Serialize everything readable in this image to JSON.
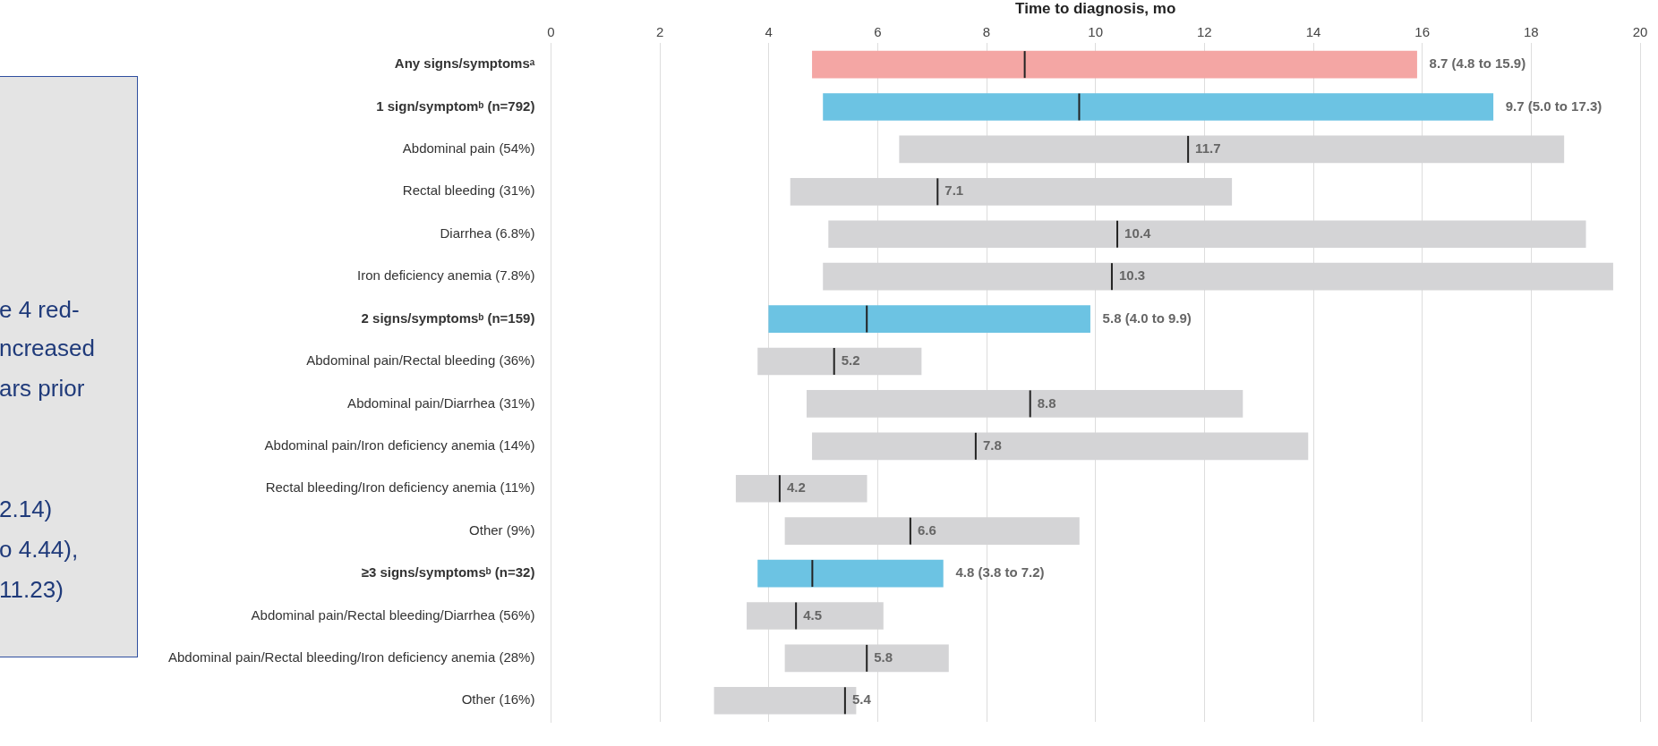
{
  "chart_data": {
    "type": "box",
    "orientation": "horizontal",
    "xlabel": "Time to diagnosis, mo",
    "categories": [
      "Any signs/symptomsᵃ",
      "1 sign/symptomᵇ (n=792)",
      "Abdominal pain (54%)",
      "Rectal bleeding (31%)",
      "Diarrhea (6.8%)",
      "Iron deficiency anemia (7.8%)",
      "2 signs/symptomsᵇ (n=159)",
      "Abdominal pain/Rectal bleeding (36%)",
      "Abdominal pain/Diarrhea (31%)",
      "Abdominal pain/Iron deficiency anemia (14%)",
      "Rectal bleeding/Iron deficiency anemia (11%)",
      "Other (9%)",
      "≥3 signs/symptomsᵇ (n=32)",
      "Abdominal pain/Rectal bleeding/Diarrhea (56%)",
      "Abdominal pain/Rectal bleeding/Iron deficiency anemia (28%)",
      "Other (16%)"
    ],
    "boxes": [
      {
        "low": 4.8,
        "q1": 4.8,
        "median": 8.7,
        "q3": 15.9,
        "high": 15.9
      },
      {
        "low": 5.0,
        "q1": 5.0,
        "median": 9.7,
        "q3": 17.3,
        "high": 17.3
      },
      {
        "low": 6.4,
        "q1": 6.4,
        "median": 11.7,
        "q3": 18.6,
        "high": 18.6
      },
      {
        "low": 4.4,
        "q1": 4.4,
        "median": 7.1,
        "q3": 12.5,
        "high": 12.5
      },
      {
        "low": 5.1,
        "q1": 5.1,
        "median": 10.4,
        "q3": 19.0,
        "high": 19.0
      },
      {
        "low": 5.0,
        "q1": 5.0,
        "median": 10.3,
        "q3": 19.5,
        "high": 19.5
      },
      {
        "low": 4.0,
        "q1": 4.0,
        "median": 5.8,
        "q3": 9.9,
        "high": 9.9
      },
      {
        "low": 3.8,
        "q1": 3.8,
        "median": 5.2,
        "q3": 6.8,
        "high": 6.8
      },
      {
        "low": 4.7,
        "q1": 4.7,
        "median": 8.8,
        "q3": 12.7,
        "high": 12.7
      },
      {
        "low": 4.8,
        "q1": 4.8,
        "median": 7.8,
        "q3": 13.9,
        "high": 13.9
      },
      {
        "low": 3.4,
        "q1": 3.4,
        "median": 4.2,
        "q3": 5.8,
        "high": 5.8
      },
      {
        "low": 4.3,
        "q1": 4.3,
        "median": 6.6,
        "q3": 9.7,
        "high": 9.7
      },
      {
        "low": 3.8,
        "q1": 3.8,
        "median": 4.8,
        "q3": 7.2,
        "high": 7.2
      },
      {
        "low": 3.6,
        "q1": 3.6,
        "median": 4.5,
        "q3": 6.1,
        "high": 6.1
      },
      {
        "low": 4.3,
        "q1": 4.3,
        "median": 5.8,
        "q3": 7.3,
        "high": 7.3
      },
      {
        "low": 3.0,
        "q1": 3.0,
        "median": 5.4,
        "q3": 5.6,
        "high": 5.6
      }
    ],
    "colors": [
      "#f4a6a4",
      "#6cc3e3",
      "#d4d4d6",
      "#d4d4d6",
      "#d4d4d6",
      "#d4d4d6",
      "#6cc3e3",
      "#d4d4d6",
      "#d4d4d6",
      "#d4d4d6",
      "#d4d4d6",
      "#d4d4d6",
      "#6cc3e3",
      "#d4d4d6",
      "#d4d4d6",
      "#d4d4d6"
    ],
    "value_labels": [
      "8.7 (4.8 to 15.9)",
      "9.7 (5.0 to 17.3)",
      "11.7",
      "7.1",
      "10.4",
      "10.3",
      "5.8 (4.0 to 9.9)",
      "5.2",
      "8.8",
      "7.8",
      "4.2",
      "6.6",
      "4.8 (3.8 to 7.2)",
      "4.5",
      "5.8",
      "5.4"
    ],
    "xlim": [
      0,
      20
    ],
    "xticks": [
      0,
      2,
      4,
      6,
      8,
      10,
      12,
      14,
      16,
      18,
      20
    ],
    "grid": "x",
    "annotations": [
      "e 4 red-",
      "ncreased",
      "ars prior",
      "2.14)",
      "o 4.44),",
      "11.23)"
    ]
  }
}
